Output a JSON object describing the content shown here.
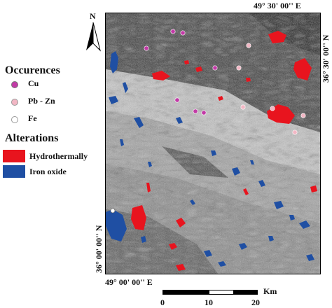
{
  "coords": {
    "top_right": "49° 30' 00'' E",
    "bottom_left": "49° 00' 00'' E",
    "right_top": "36° 30' 00'' N",
    "left_bottom": "36° 00' 00'' N"
  },
  "north": {
    "label": "N"
  },
  "legend": {
    "occurences_title": "Occurences",
    "occurences": [
      {
        "label": "Cu",
        "color": "#c23aa6"
      },
      {
        "label": "Pb - Zn",
        "color": "#f2b7c4"
      },
      {
        "label": "Fe",
        "color": "#ffffff"
      }
    ],
    "alterations_title": "Alterations",
    "alterations": [
      {
        "label": "Hydrothermally",
        "color": "#e8141e"
      },
      {
        "label": "Iron oxide",
        "color": "#1f4fa3"
      }
    ]
  },
  "scalebar": {
    "unit": "Km",
    "ticks": [
      "0",
      "10",
      "20"
    ]
  }
}
